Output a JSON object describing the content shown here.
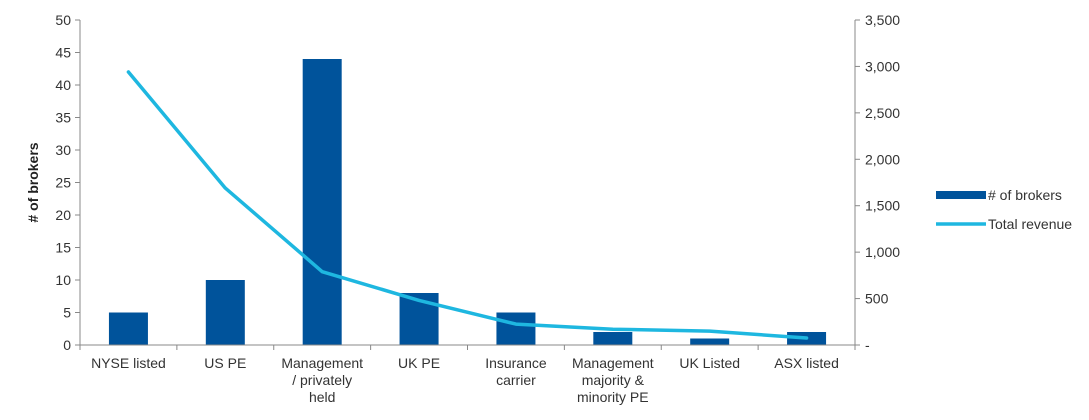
{
  "chart_data": {
    "type": "bar+line",
    "categories": [
      [
        "NYSE listed"
      ],
      [
        "US PE"
      ],
      [
        "Management",
        "/ privately",
        "held"
      ],
      [
        "UK PE"
      ],
      [
        "Insurance",
        "carrier"
      ],
      [
        "Management",
        "majority &",
        "minority PE"
      ],
      [
        "UK Listed"
      ],
      [
        "ASX listed"
      ]
    ],
    "series": [
      {
        "name": "# of brokers",
        "type": "bar",
        "axis": "left",
        "color": "#00539B",
        "values": [
          5,
          10,
          44,
          8,
          5,
          2,
          1,
          2
        ]
      },
      {
        "name": "Total revenue",
        "type": "line",
        "axis": "right",
        "color": "#1EB7E0",
        "values": [
          2940,
          1690,
          790,
          480,
          225,
          170,
          150,
          75
        ]
      }
    ],
    "ylabel_left": "# of brokers",
    "ylim_left": [
      0,
      50
    ],
    "yticks_left": [
      "0",
      "5",
      "10",
      "15",
      "20",
      "25",
      "30",
      "35",
      "40",
      "45",
      "50"
    ],
    "ylim_right": [
      0,
      3500
    ],
    "yticks_right": [
      "-",
      "500",
      "1,000",
      "1,500",
      "2,000",
      "2,500",
      "3,000",
      "3,500"
    ],
    "grid": false,
    "legend": "right"
  }
}
